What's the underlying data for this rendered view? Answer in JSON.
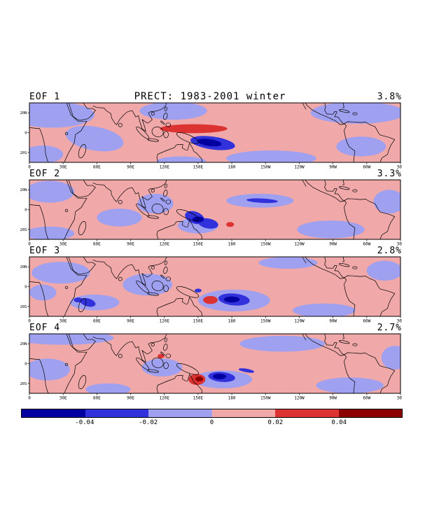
{
  "page": {
    "background": "#ffffff"
  },
  "chart_data": {
    "type": "heatmap",
    "variant": "EOF filled-contour anomaly maps, 4 stacked panels sharing one colorbar",
    "title": "PRECT: 1983-2001 winter",
    "region": {
      "lon_min_deg_east": 0,
      "lon_max_deg_east": 330,
      "lat_min": -30,
      "lat_max": 30
    },
    "lat_ticks": [
      {
        "label": "20N",
        "lat": 20
      },
      {
        "label": "0",
        "lat": 0
      },
      {
        "label": "20S",
        "lat": -20
      }
    ],
    "lon_ticks": [
      {
        "label": "0",
        "lon": 0
      },
      {
        "label": "30E",
        "lon": 30
      },
      {
        "label": "60E",
        "lon": 60
      },
      {
        "label": "90E",
        "lon": 90
      },
      {
        "label": "120E",
        "lon": 120
      },
      {
        "label": "150E",
        "lon": 150
      },
      {
        "label": "180",
        "lon": 180
      },
      {
        "label": "150W",
        "lon": 210
      },
      {
        "label": "120W",
        "lon": 240
      },
      {
        "label": "90W",
        "lon": 270
      },
      {
        "label": "60W",
        "lon": 300
      },
      {
        "label": "30W",
        "lon": 330
      }
    ],
    "colorbar": {
      "tick_labels": [
        "-0.04",
        "-0.02",
        "0",
        "0.02",
        "0.04"
      ],
      "segment_colors": [
        "#0000a0",
        "#3232dc",
        "#a0a0f0",
        "#f0a8a8",
        "#dc3232",
        "#8c0000"
      ],
      "level_map": {
        "neg2": "#0000a0",
        "neg": "#3232dc",
        "bg_blue": "#a0a0f0",
        "bg_pink": "#f0a8a8",
        "pos": "#dc3232",
        "pos2": "#8c0000"
      }
    },
    "panels": [
      {
        "label": "EOF 1",
        "percent": "3.8%",
        "blue_patches": [
          [
            20,
            18,
            38,
            13,
            0
          ],
          [
            58,
            -6,
            26,
            12,
            10
          ],
          [
            12,
            -22,
            18,
            9,
            0
          ],
          [
            128,
            22,
            30,
            9,
            0
          ],
          [
            292,
            20,
            42,
            11,
            0
          ],
          [
            215,
            -26,
            40,
            8,
            0
          ],
          [
            295,
            -14,
            22,
            10,
            0
          ],
          [
            135,
            -29,
            22,
            5,
            0
          ]
        ],
        "anomalies": [
          [
            146,
            4,
            30,
            4.5,
            0,
            "pos"
          ],
          [
            163,
            -10.5,
            20,
            6.5,
            8,
            "neg"
          ],
          [
            160,
            -10,
            11,
            3.5,
            8,
            "neg2"
          ]
        ]
      },
      {
        "label": "EOF 2",
        "percent": "3.3%",
        "blue_patches": [
          [
            18,
            18,
            22,
            11,
            0
          ],
          [
            80,
            -8,
            20,
            9,
            0
          ],
          [
            18,
            -24,
            22,
            7,
            0
          ],
          [
            112,
            6,
            16,
            10,
            0
          ],
          [
            205,
            9,
            30,
            7,
            0
          ],
          [
            268,
            -20,
            30,
            9,
            0
          ],
          [
            320,
            8,
            14,
            12,
            0
          ],
          [
            150,
            -16,
            18,
            8,
            0
          ]
        ],
        "anomalies": [
          [
            147,
            -8,
            9,
            6,
            20,
            "neg"
          ],
          [
            159,
            -14,
            9,
            5,
            10,
            "neg"
          ],
          [
            150,
            -10,
            5,
            3,
            0,
            "neg2"
          ],
          [
            178.5,
            -15,
            3.5,
            2.5,
            0,
            "pos"
          ],
          [
            207,
            9,
            14,
            2.2,
            3,
            "neg"
          ]
        ]
      },
      {
        "label": "EOF 3",
        "percent": "2.8%",
        "blue_patches": [
          [
            28,
            14,
            26,
            11,
            0
          ],
          [
            58,
            -16,
            22,
            8,
            0
          ],
          [
            105,
            2,
            22,
            11,
            0
          ],
          [
            182,
            -14,
            32,
            11,
            0
          ],
          [
            262,
            -24,
            28,
            7,
            0
          ],
          [
            316,
            16,
            16,
            10,
            0
          ],
          [
            230,
            24,
            26,
            6,
            0
          ],
          [
            12,
            -6,
            12,
            8,
            0
          ]
        ],
        "anomalies": [
          [
            52,
            -16,
            7,
            4,
            15,
            "neg"
          ],
          [
            43.5,
            -13.5,
            4,
            2.5,
            0,
            "neg"
          ],
          [
            161,
            -13.5,
            6.5,
            4,
            0,
            "pos"
          ],
          [
            182,
            -13,
            14,
            6,
            5,
            "neg"
          ],
          [
            180,
            -13,
            7,
            3,
            0,
            "neg2"
          ],
          [
            150,
            -4,
            3,
            2,
            0,
            "neg"
          ]
        ]
      },
      {
        "label": "EOF 4",
        "percent": "2.7%",
        "blue_patches": [
          [
            30,
            26,
            45,
            7,
            0
          ],
          [
            16,
            -6,
            20,
            11,
            0
          ],
          [
            118,
            -4,
            18,
            9,
            0
          ],
          [
            172,
            -16,
            26,
            9,
            0
          ],
          [
            225,
            20,
            38,
            8,
            0
          ],
          [
            285,
            -22,
            30,
            8,
            0
          ],
          [
            325,
            6,
            12,
            12,
            0
          ],
          [
            70,
            -26,
            20,
            6,
            0
          ]
        ],
        "anomalies": [
          [
            149,
            -16,
            7.5,
            5.5,
            0,
            "pos"
          ],
          [
            151,
            -15.5,
            3.5,
            2.5,
            0,
            "pos2"
          ],
          [
            171,
            -13.5,
            12,
            5,
            5,
            "neg"
          ],
          [
            169,
            -13,
            6,
            2.8,
            0,
            "neg2"
          ],
          [
            117,
            7.5,
            3,
            2.2,
            0,
            "pos"
          ],
          [
            193,
            -7,
            7,
            1.8,
            10,
            "neg"
          ]
        ]
      }
    ]
  }
}
